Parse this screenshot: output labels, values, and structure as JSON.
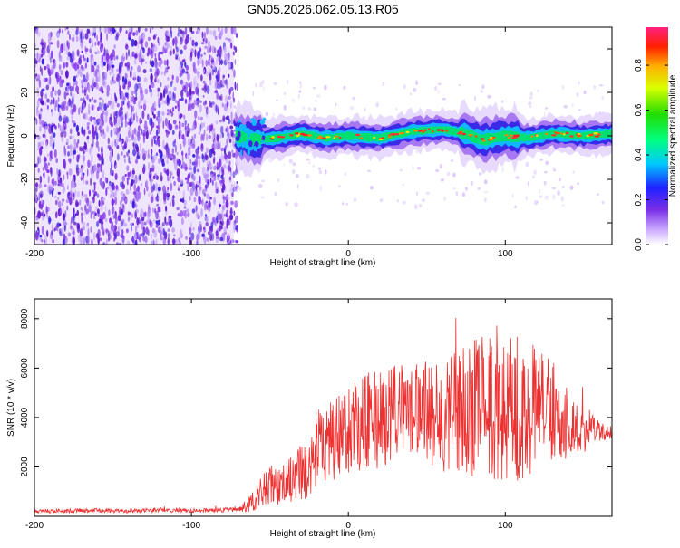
{
  "title": "GN05.2026.062.05.13.R05",
  "colors": {
    "snr_line": "#ee3030",
    "spectrogram_noise": "#7b2fe0",
    "ridge": "#00e050"
  },
  "chart_data": [
    {
      "type": "heatmap",
      "name": "spectrogram",
      "xlabel": "Height of straight line (km)",
      "ylabel": "Frequency (Hz)",
      "xlim": [
        -200,
        168
      ],
      "ylim": [
        -50,
        50
      ],
      "xticks": [
        -200,
        -100,
        0,
        100
      ],
      "yticks": [
        -40,
        -20,
        0,
        20,
        40
      ],
      "grid": false,
      "noise_region_x": [
        -200,
        -73
      ],
      "ridge": [
        {
          "x": -72,
          "y": 0
        },
        {
          "x": -60,
          "y": -2
        },
        {
          "x": -45,
          "y": -1
        },
        {
          "x": -30,
          "y": 1
        },
        {
          "x": -15,
          "y": -1
        },
        {
          "x": 0,
          "y": 0
        },
        {
          "x": 20,
          "y": -1
        },
        {
          "x": 40,
          "y": 2
        },
        {
          "x": 60,
          "y": 3
        },
        {
          "x": 75,
          "y": 1
        },
        {
          "x": 85,
          "y": -2
        },
        {
          "x": 100,
          "y": 0
        },
        {
          "x": 115,
          "y": -1
        },
        {
          "x": 130,
          "y": 1
        },
        {
          "x": 150,
          "y": 0
        },
        {
          "x": 168,
          "y": 1
        }
      ],
      "colorbar": {
        "label": "Normalized spectral amplitude",
        "range": [
          0,
          0.97
        ],
        "ticks": [
          0.0,
          0.2,
          0.4,
          0.6,
          0.8
        ]
      }
    },
    {
      "type": "line",
      "name": "snr",
      "xlabel": "Height of straight line (km)",
      "ylabel": "SNR (10 * v/v)",
      "xlim": [
        -200,
        168
      ],
      "ylim": [
        0,
        8800
      ],
      "xticks": [
        -200,
        -100,
        0,
        100
      ],
      "yticks": [
        2000,
        4000,
        6000,
        8000
      ],
      "grid": false,
      "series": [
        {
          "x": [
            -200,
            -180,
            -160,
            -140,
            -120,
            -100,
            -80,
            -70,
            -62,
            -55,
            -50,
            -45,
            -40,
            -35,
            -30,
            -25,
            -20,
            -15,
            -10,
            -5,
            0,
            10,
            20,
            30,
            40,
            50,
            60,
            70,
            80,
            90,
            95,
            100,
            105,
            110,
            120,
            130,
            140,
            150,
            160,
            168
          ],
          "y": [
            200,
            220,
            240,
            220,
            250,
            230,
            260,
            280,
            500,
            1000,
            1300,
            1250,
            1450,
            1600,
            1800,
            1700,
            2800,
            3100,
            2900,
            3400,
            3500,
            3800,
            3900,
            4300,
            4400,
            4200,
            4000,
            4300,
            4600,
            4500,
            4800,
            4400,
            4600,
            4300,
            4400,
            4200,
            3800,
            3600,
            3450,
            3400
          ],
          "amplitude": [
            60,
            60,
            70,
            60,
            70,
            60,
            70,
            80,
            300,
            500,
            600,
            600,
            700,
            800,
            900,
            900,
            1200,
            1300,
            1300,
            1400,
            1400,
            1500,
            1600,
            1700,
            1700,
            1600,
            1800,
            2000,
            2300,
            2500,
            2700,
            2600,
            2500,
            2300,
            1900,
            1600,
            1200,
            800,
            300,
            200
          ]
        }
      ]
    }
  ]
}
